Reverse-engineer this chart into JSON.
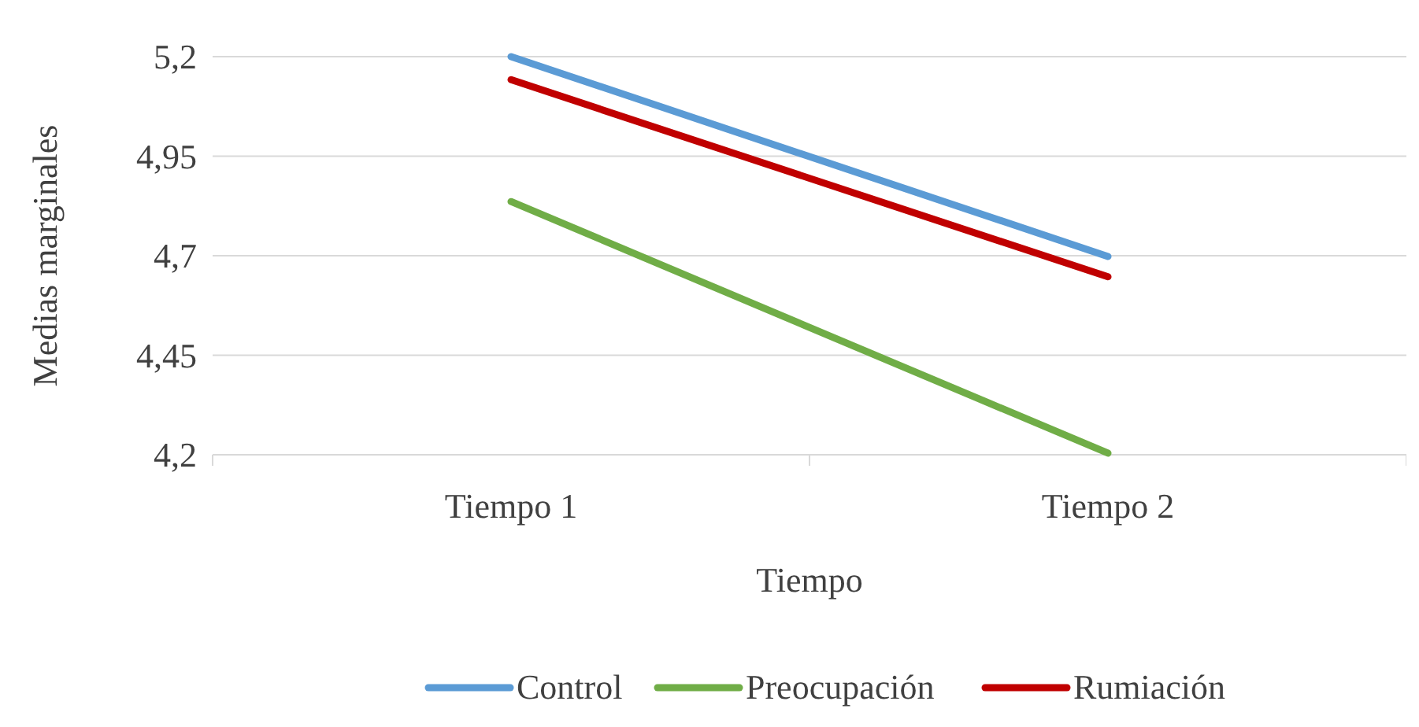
{
  "chart_data": {
    "type": "line",
    "xlabel": "Tiempo",
    "ylabel": "Medias marginales",
    "categories": [
      "Tiempo 1",
      "Tiempo 2"
    ],
    "series": [
      {
        "name": "Control",
        "color": "#5b9bd5",
        "values": [
          5.2,
          4.698
        ]
      },
      {
        "name": "Preocupación",
        "color": "#70ad47",
        "values": [
          4.836,
          4.204
        ]
      },
      {
        "name": "Rumiación",
        "color": "#c00000",
        "values": [
          5.142,
          4.647
        ]
      }
    ],
    "ylim": [
      4.2,
      5.2
    ],
    "yticks": [
      {
        "value": 4.2,
        "label": "4,2"
      },
      {
        "value": 4.45,
        "label": "4,45"
      },
      {
        "value": 4.7,
        "label": "4,7"
      },
      {
        "value": 4.95,
        "label": "4,95"
      },
      {
        "value": 5.2,
        "label": "5,2"
      }
    ],
    "grid": "y",
    "legend": "bottom",
    "marker": "none",
    "line_style": "solid"
  }
}
